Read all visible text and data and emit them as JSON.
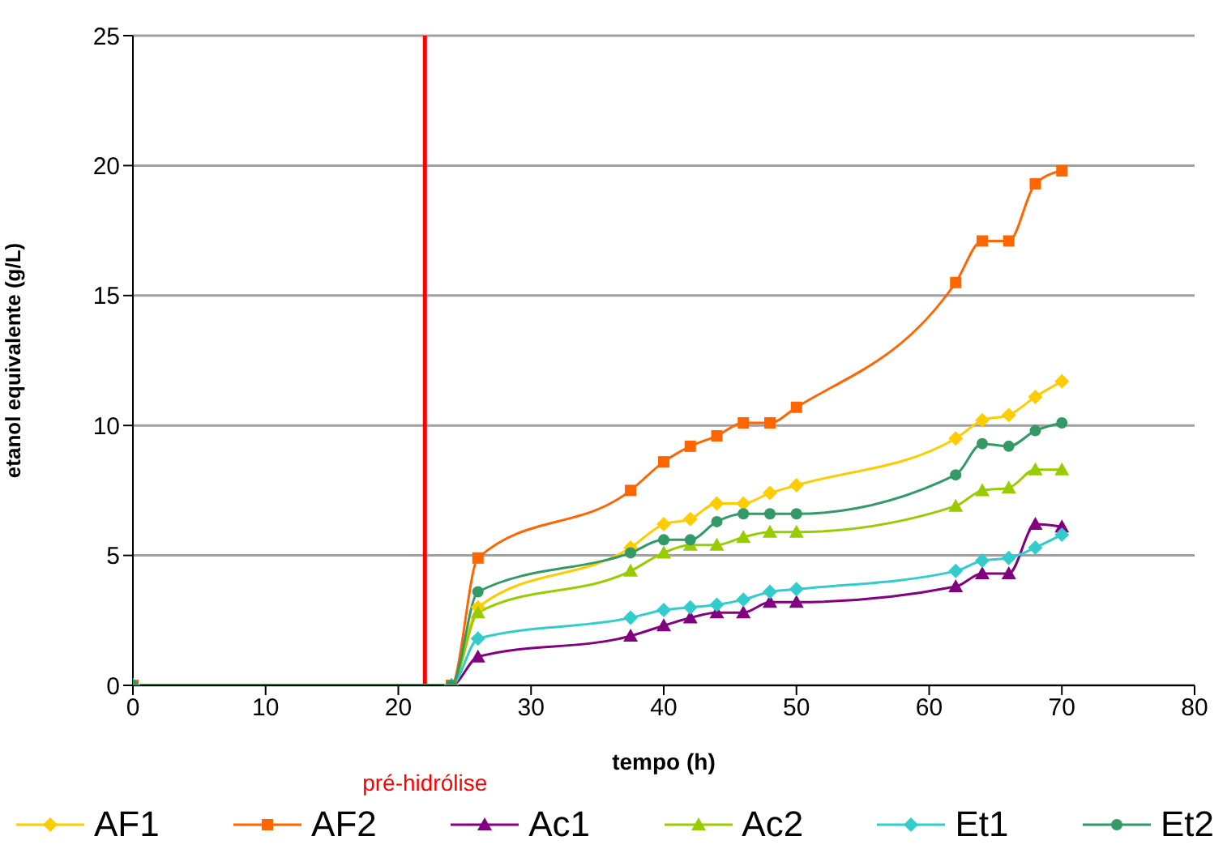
{
  "chart_data": {
    "type": "line",
    "xlabel": "tempo (h)",
    "ylabel": "etanol equivalente (g/L)",
    "x": [
      0,
      24,
      26,
      37.5,
      40,
      42,
      44,
      46,
      48,
      50,
      62,
      64,
      66,
      68,
      70
    ],
    "series": [
      {
        "name": "AF1",
        "color": "#ffcc00",
        "marker": "diamond",
        "values": [
          0,
          0,
          3.0,
          5.3,
          6.2,
          6.4,
          7.0,
          7.0,
          7.4,
          7.7,
          9.5,
          10.2,
          10.4,
          11.1,
          11.7
        ]
      },
      {
        "name": "AF2",
        "color": "#ff6600",
        "marker": "square",
        "values": [
          0,
          0,
          4.9,
          7.5,
          8.6,
          9.2,
          9.6,
          10.1,
          10.1,
          10.7,
          15.5,
          17.1,
          17.1,
          19.3,
          19.8
        ]
      },
      {
        "name": "Ac1",
        "color": "#800080",
        "marker": "triangle",
        "values": [
          0,
          0,
          1.1,
          1.9,
          2.3,
          2.6,
          2.8,
          2.8,
          3.2,
          3.2,
          3.8,
          4.3,
          4.3,
          6.2,
          6.1
        ]
      },
      {
        "name": "Ac2",
        "color": "#99cc00",
        "marker": "triangle",
        "values": [
          0,
          0,
          2.8,
          4.4,
          5.1,
          5.4,
          5.4,
          5.7,
          5.9,
          5.9,
          6.9,
          7.5,
          7.6,
          8.3,
          8.3
        ]
      },
      {
        "name": "Et1",
        "color": "#33cccc",
        "marker": "diamond",
        "values": [
          0,
          0,
          1.8,
          2.6,
          2.9,
          3.0,
          3.1,
          3.3,
          3.6,
          3.7,
          4.4,
          4.8,
          4.9,
          5.3,
          5.8
        ]
      },
      {
        "name": "Et2",
        "color": "#339966",
        "marker": "circle",
        "values": [
          0,
          0,
          3.6,
          5.1,
          5.6,
          5.6,
          6.3,
          6.6,
          6.6,
          6.6,
          8.1,
          9.3,
          9.2,
          9.8,
          10.1
        ]
      }
    ],
    "xlim": [
      0,
      80
    ],
    "xticks": [
      0,
      10,
      20,
      30,
      40,
      50,
      60,
      70,
      80
    ],
    "ylim": [
      0,
      25
    ],
    "yticks": [
      0,
      5,
      10,
      15,
      20,
      25
    ],
    "ref_lines": [
      {
        "axis": "x",
        "value": 22,
        "label": "pré-hidrólise",
        "color": "#ff0000"
      }
    ],
    "grid": "y",
    "legend": "bottom",
    "line_style": "solid"
  }
}
